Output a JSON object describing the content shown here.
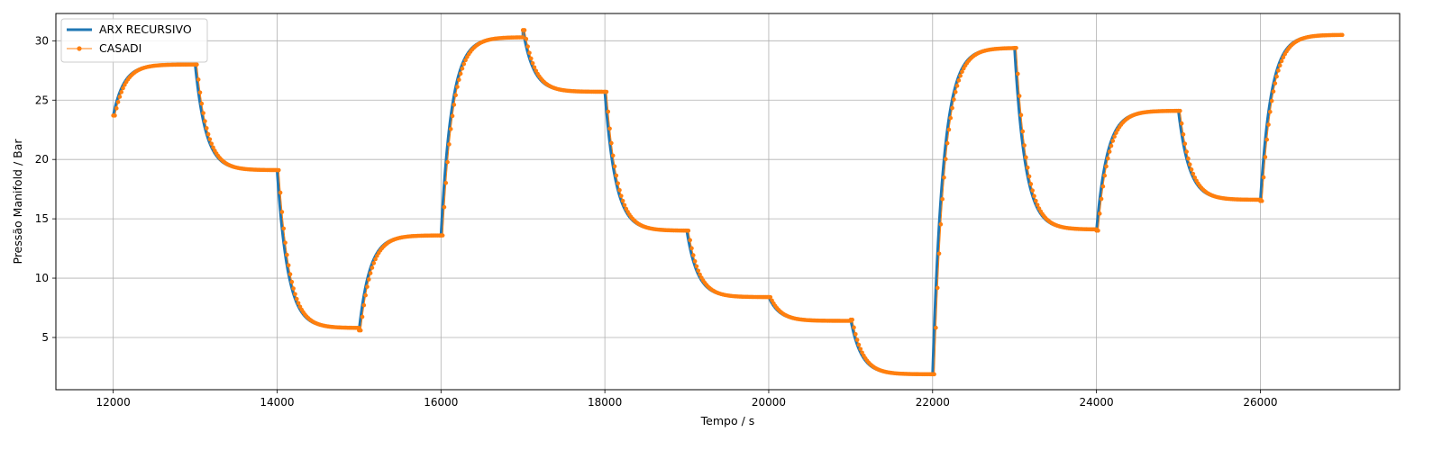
{
  "chart_data": {
    "type": "line",
    "xlabel": "Tempo / s",
    "ylabel": "Pressão Manifold / Bar",
    "xlim": [
      11300,
      27700
    ],
    "ylim": [
      0.6,
      32.3
    ],
    "xticks": [
      12000,
      14000,
      16000,
      18000,
      20000,
      22000,
      24000,
      26000
    ],
    "yticks": [
      5,
      10,
      15,
      20,
      25,
      30
    ],
    "grid": true,
    "legend_position": "top-left",
    "colors": {
      "arx": "#1f77b4",
      "casadi": "#ff7f0e",
      "grid": "#b0b0b0"
    },
    "steps": [
      {
        "t0": 12000,
        "v0": 23.7,
        "v1": 28.0
      },
      {
        "t0": 13000,
        "v0": 28.0,
        "v1": 19.1
      },
      {
        "t0": 14000,
        "v0": 19.1,
        "v1": 5.8
      },
      {
        "t0": 15000,
        "v0": 5.6,
        "v1": 13.6
      },
      {
        "t0": 16000,
        "v0": 13.6,
        "v1": 30.3
      },
      {
        "t0": 17000,
        "v0": 30.9,
        "v1": 25.7
      },
      {
        "t0": 18000,
        "v0": 25.7,
        "v1": 14.0
      },
      {
        "t0": 19000,
        "v0": 14.0,
        "v1": 8.4
      },
      {
        "t0": 20000,
        "v0": 8.4,
        "v1": 6.4
      },
      {
        "t0": 21000,
        "v0": 6.5,
        "v1": 1.9
      },
      {
        "t0": 22000,
        "v0": 1.9,
        "v1": 29.4
      },
      {
        "t0": 23000,
        "v0": 29.4,
        "v1": 14.1
      },
      {
        "t0": 24000,
        "v0": 14.0,
        "v1": 24.1
      },
      {
        "t0": 25000,
        "v0": 24.1,
        "v1": 16.6
      },
      {
        "t0": 26000,
        "v0": 16.5,
        "v1": 30.5
      }
    ],
    "step_duration": 1000,
    "time_constant": 130,
    "series": [
      {
        "name": "ARX RECURSIVO",
        "style": "thick-line"
      },
      {
        "name": "CASADI",
        "style": "line-with-dots"
      }
    ]
  }
}
